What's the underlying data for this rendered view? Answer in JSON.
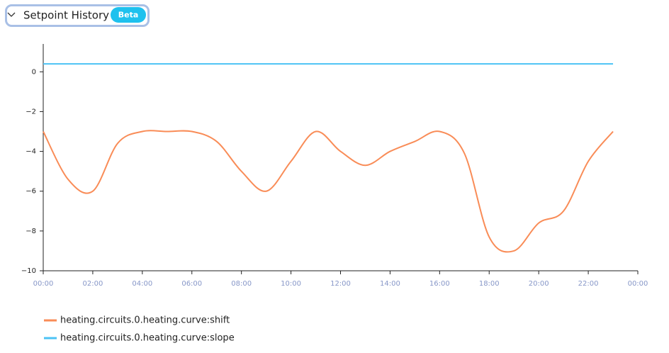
{
  "header": {
    "title": "Setpoint History",
    "badge": "Beta"
  },
  "chart_data": {
    "type": "line",
    "x": [
      0,
      1,
      2,
      3,
      4,
      5,
      6,
      7,
      8,
      9,
      10,
      11,
      12,
      13,
      14,
      15,
      16,
      17,
      18,
      19,
      20,
      21,
      22,
      23
    ],
    "xlim": [
      0,
      24
    ],
    "xticks": [
      {
        "value": 0,
        "label": "00:00"
      },
      {
        "value": 2,
        "label": "02:00"
      },
      {
        "value": 4,
        "label": "04:00"
      },
      {
        "value": 6,
        "label": "06:00"
      },
      {
        "value": 8,
        "label": "08:00"
      },
      {
        "value": 10,
        "label": "10:00"
      },
      {
        "value": 12,
        "label": "12:00"
      },
      {
        "value": 14,
        "label": "14:00"
      },
      {
        "value": 16,
        "label": "16:00"
      },
      {
        "value": 18,
        "label": "18:00"
      },
      {
        "value": 20,
        "label": "20:00"
      },
      {
        "value": 22,
        "label": "22:00"
      },
      {
        "value": 24,
        "label": "00:00"
      }
    ],
    "ylim": [
      -10,
      1.4
    ],
    "yticks": [
      {
        "value": -10,
        "label": "−10"
      },
      {
        "value": -8,
        "label": "−8"
      },
      {
        "value": -6,
        "label": "−6"
      },
      {
        "value": -4,
        "label": "−4"
      },
      {
        "value": -2,
        "label": "−2"
      },
      0
    ],
    "series": [
      {
        "name": "heating.circuits.0.heating.curve:shift",
        "color": "#f98c57",
        "values": [
          -3.0,
          -5.4,
          -6.0,
          -3.6,
          -3.0,
          -3.0,
          -3.0,
          -3.5,
          -5.0,
          -6.0,
          -4.5,
          -3.0,
          -4.0,
          -4.7,
          -4.0,
          -3.5,
          -3.0,
          -4.1,
          -8.3,
          -9.0,
          -7.6,
          -7.0,
          -4.5,
          -3.0
        ]
      },
      {
        "name": "heating.circuits.0.heating.curve:slope",
        "color": "#4cc3f5",
        "values": [
          0.4,
          0.4,
          0.4,
          0.4,
          0.4,
          0.4,
          0.4,
          0.4,
          0.4,
          0.4,
          0.4,
          0.4,
          0.4,
          0.4,
          0.4,
          0.4,
          0.4,
          0.4,
          0.4,
          0.4,
          0.4,
          0.4,
          0.4,
          0.4
        ]
      }
    ]
  }
}
